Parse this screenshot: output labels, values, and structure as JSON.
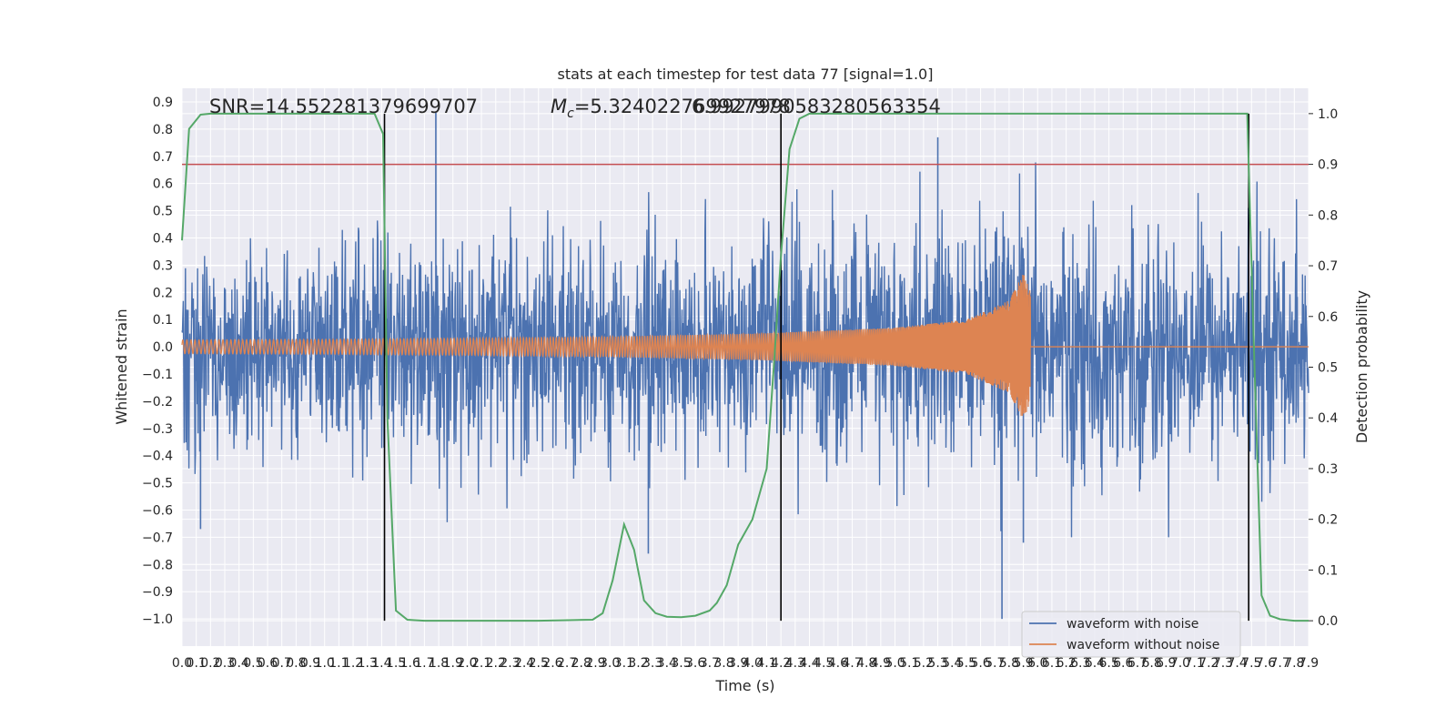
{
  "chart_data": {
    "type": "line",
    "title": "stats at each timestep for test data 77 [signal=1.0]",
    "xlabel": "Time (s)",
    "ylabel": "Whitened strain",
    "ylabel_right": "Detection probability",
    "xlim": [
      0.0,
      7.9
    ],
    "ylim": [
      -1.1,
      0.95
    ],
    "ylim_right": [
      -0.05,
      1.05
    ],
    "x_ticks": [
      0.0,
      0.1,
      0.2,
      0.3,
      0.4,
      0.5,
      0.6,
      0.7,
      0.8,
      0.9,
      1.0,
      1.1,
      1.2,
      1.3,
      1.4,
      1.5,
      1.6,
      1.7,
      1.8,
      1.9,
      2.0,
      2.1,
      2.2,
      2.3,
      2.4,
      2.5,
      2.6,
      2.7,
      2.8,
      2.9,
      3.0,
      3.1,
      3.2,
      3.3,
      3.4,
      3.5,
      3.6,
      3.7,
      3.8,
      3.9,
      4.0,
      4.1,
      4.2,
      4.3,
      4.4,
      4.5,
      4.6,
      4.7,
      4.8,
      4.9,
      5.0,
      5.1,
      5.2,
      5.3,
      5.4,
      5.5,
      5.6,
      5.7,
      5.8,
      5.9,
      6.0,
      6.1,
      6.2,
      6.3,
      6.4,
      6.5,
      6.6,
      6.7,
      6.8,
      6.9,
      7.0,
      7.1,
      7.2,
      7.3,
      7.4,
      7.5,
      7.6,
      7.7,
      7.8,
      7.9
    ],
    "y_ticks": [
      -1.0,
      -0.9,
      -0.8,
      -0.7,
      -0.6,
      -0.5,
      -0.4,
      -0.3,
      -0.2,
      -0.1,
      0.0,
      0.1,
      0.2,
      0.3,
      0.4,
      0.5,
      0.6,
      0.7,
      0.8,
      0.9
    ],
    "y_ticks_right": [
      0.0,
      0.1,
      0.2,
      0.3,
      0.4,
      0.5,
      0.6,
      0.7,
      0.8,
      0.9,
      1.0
    ],
    "grid": true,
    "legend_position": "lower-right",
    "annotations": {
      "snr": "SNR=14.552281379699707",
      "mc_symbol": "M",
      "mc_sub": "c",
      "mc_value": "=5.324022769927978",
      "overlap_value": "6.9927990583280563354"
    },
    "threshold": {
      "value": 0.9,
      "axis": "right",
      "color": "#c44e52"
    },
    "vertical_lines": [
      1.42,
      4.2,
      7.48
    ],
    "series": [
      {
        "name": "waveform with noise",
        "color": "#4c72b0",
        "kind": "noise",
        "envelope_x": [
          0.0,
          1.0,
          2.0,
          3.0,
          4.0,
          5.0,
          6.0,
          7.0,
          7.9
        ],
        "envelope_amp": [
          0.42,
          0.44,
          0.46,
          0.44,
          0.45,
          0.5,
          0.5,
          0.45,
          0.45
        ],
        "spikes": [
          {
            "x": 1.78,
            "y": 0.86
          },
          {
            "x": 5.3,
            "y": 0.77
          },
          {
            "x": 5.75,
            "y": -1.0
          },
          {
            "x": 5.9,
            "y": -0.72
          },
          {
            "x": 3.27,
            "y": -0.76
          },
          {
            "x": 0.13,
            "y": -0.67
          }
        ]
      },
      {
        "name": "waveform without noise",
        "color": "#dd8452",
        "kind": "chirp",
        "chirp_end": 5.95,
        "amp_x": [
          0.0,
          1.0,
          2.0,
          3.0,
          4.0,
          5.0,
          5.5,
          5.8,
          5.9,
          5.95
        ],
        "amp_y": [
          0.025,
          0.027,
          0.031,
          0.037,
          0.048,
          0.07,
          0.1,
          0.17,
          0.27,
          0.2
        ]
      },
      {
        "name": "",
        "color": "#55a868",
        "axis": "right",
        "x": [
          0.0,
          0.05,
          0.13,
          0.2,
          1.35,
          1.41,
          1.44,
          1.5,
          1.58,
          1.7,
          2.0,
          2.5,
          2.88,
          2.95,
          3.02,
          3.1,
          3.17,
          3.24,
          3.32,
          3.4,
          3.5,
          3.6,
          3.7,
          3.75,
          3.82,
          3.9,
          4.0,
          4.1,
          4.15,
          4.2,
          4.26,
          4.33,
          4.4,
          4.6,
          7.4,
          7.47,
          7.51,
          7.57,
          7.63,
          7.7,
          7.8,
          7.9
        ],
        "y": [
          0.75,
          0.97,
          0.998,
          1.0,
          1.0,
          0.96,
          0.4,
          0.02,
          0.002,
          0.0,
          0.0,
          0.0,
          0.002,
          0.015,
          0.08,
          0.19,
          0.14,
          0.04,
          0.015,
          0.008,
          0.007,
          0.01,
          0.02,
          0.035,
          0.07,
          0.15,
          0.2,
          0.3,
          0.5,
          0.72,
          0.93,
          0.99,
          1.0,
          1.0,
          1.0,
          1.0,
          0.6,
          0.05,
          0.01,
          0.003,
          0.0,
          0.0
        ]
      }
    ]
  }
}
